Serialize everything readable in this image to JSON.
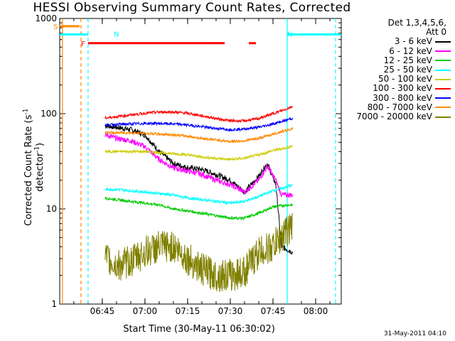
{
  "chart_data": {
    "type": "line",
    "title": "HESSI Observing Summary Count Rates, Corrected",
    "xlabel": "Start Time (30-May-11 06:30:02)",
    "ylabel_main": "Corrected Count Rate (s",
    "ylabel_sup1": "-1",
    "ylabel_mid": " detector",
    "ylabel_sup2": "-1",
    "ylabel_end": ")",
    "y_scale": "log",
    "ylim": [
      1,
      1000
    ],
    "xlim_minutes": [
      "06:30:02",
      "08:09:00"
    ],
    "x_ticks": [
      "06:45",
      "07:00",
      "07:15",
      "07:30",
      "07:45",
      "08:00"
    ],
    "y_ticks": [
      "1",
      "10",
      "100",
      "1000"
    ],
    "legend_header": [
      "Det 1,3,4,5,6,",
      "Att 0"
    ],
    "series": [
      {
        "name": "3 - 6 keV",
        "color": "#000000",
        "x": [
          "06:46",
          "06:50",
          "06:55",
          "07:00",
          "07:05",
          "07:10",
          "07:15",
          "07:20",
          "07:25",
          "07:30",
          "07:35",
          "07:40",
          "07:43",
          "07:46",
          "07:48",
          "07:52"
        ],
        "y": [
          75,
          72,
          68,
          60,
          40,
          30,
          27,
          26,
          23,
          20,
          15,
          22,
          30,
          18,
          4,
          3.5
        ]
      },
      {
        "name": "6 - 12 keV",
        "color": "#ff00ff",
        "x": [
          "06:46",
          "06:50",
          "06:55",
          "07:00",
          "07:05",
          "07:10",
          "07:15",
          "07:20",
          "07:25",
          "07:30",
          "07:35",
          "07:40",
          "07:43",
          "07:46",
          "07:48",
          "07:52"
        ],
        "y": [
          60,
          55,
          52,
          45,
          33,
          27,
          25,
          23,
          20,
          18,
          15,
          20,
          28,
          20,
          14,
          14
        ]
      },
      {
        "name": "12 - 25 keV",
        "color": "#00cc00",
        "x": [
          "06:46",
          "06:50",
          "06:55",
          "07:00",
          "07:05",
          "07:10",
          "07:15",
          "07:20",
          "07:25",
          "07:30",
          "07:35",
          "07:40",
          "07:45",
          "07:50",
          "07:52"
        ],
        "y": [
          13,
          12.5,
          12,
          11.5,
          11,
          10,
          9.5,
          9,
          8.5,
          8,
          8,
          9,
          10.5,
          11,
          11
        ]
      },
      {
        "name": "25 - 50 keV",
        "color": "#00ffff",
        "x": [
          "06:46",
          "06:50",
          "06:55",
          "07:00",
          "07:05",
          "07:10",
          "07:15",
          "07:20",
          "07:25",
          "07:30",
          "07:35",
          "07:40",
          "07:45",
          "07:50",
          "07:52"
        ],
        "y": [
          16,
          16,
          15.5,
          15,
          14.5,
          14,
          13,
          12.5,
          12,
          11.5,
          12,
          13.5,
          15.5,
          17,
          18
        ]
      },
      {
        "name": "50 - 100 keV",
        "color": "#cccc00",
        "x": [
          "06:46",
          "06:50",
          "06:55",
          "07:00",
          "07:05",
          "07:10",
          "07:15",
          "07:20",
          "07:25",
          "07:30",
          "07:35",
          "07:40",
          "07:45",
          "07:50",
          "07:52"
        ],
        "y": [
          40,
          40,
          40,
          40,
          39,
          38,
          37,
          35,
          34,
          33,
          34,
          37,
          41,
          44,
          46
        ]
      },
      {
        "name": "100 - 300 keV",
        "color": "#ff0000",
        "x": [
          "06:46",
          "06:50",
          "06:55",
          "07:00",
          "07:05",
          "07:10",
          "07:15",
          "07:20",
          "07:25",
          "07:30",
          "07:35",
          "07:40",
          "07:45",
          "07:50",
          "07:52"
        ],
        "y": [
          90,
          93,
          97,
          101,
          104,
          104,
          101,
          95,
          89,
          84,
          84,
          89,
          100,
          113,
          120
        ]
      },
      {
        "name": "300 - 800 keV",
        "color": "#0000ff",
        "x": [
          "06:46",
          "06:50",
          "06:55",
          "07:00",
          "07:05",
          "07:10",
          "07:15",
          "07:20",
          "07:25",
          "07:30",
          "07:35",
          "07:40",
          "07:45",
          "07:50",
          "07:52"
        ],
        "y": [
          76,
          77,
          78,
          79,
          79,
          78,
          76,
          73,
          70,
          68,
          69,
          72,
          78,
          86,
          90
        ]
      },
      {
        "name": "800 - 7000 keV",
        "color": "#ff8800",
        "x": [
          "06:46",
          "06:50",
          "06:55",
          "07:00",
          "07:05",
          "07:10",
          "07:15",
          "07:20",
          "07:25",
          "07:30",
          "07:35",
          "07:40",
          "07:45",
          "07:50",
          "07:52"
        ],
        "y": [
          63,
          63,
          63,
          62,
          61,
          60,
          58,
          55,
          53,
          51,
          52,
          55,
          61,
          67,
          70
        ]
      },
      {
        "name": "7000 - 20000 keV",
        "color": "#808000",
        "x": [
          "06:46",
          "06:50",
          "06:55",
          "07:00",
          "07:05",
          "07:10",
          "07:15",
          "07:20",
          "07:25",
          "07:30",
          "07:35",
          "07:40",
          "07:45",
          "07:50",
          "07:52"
        ],
        "y": [
          3,
          2.5,
          2.8,
          3.5,
          4,
          4,
          3,
          2.3,
          2,
          2,
          2.2,
          3.5,
          4,
          6,
          6.5
        ]
      }
    ],
    "flags": [
      {
        "label": "S",
        "color": "#ff8800",
        "start": "06:30:02",
        "end": "06:37:00",
        "level": 830
      },
      {
        "label": "N",
        "color": "#00ffff",
        "start": "06:30:02",
        "end": "06:40:00",
        "level": 680
      },
      {
        "label": "N",
        "color": "#00ffff",
        "start": "07:50:00",
        "end": "08:09:00",
        "level": 680
      },
      {
        "label": "F",
        "color": "#ff0000",
        "start": "06:40:00",
        "end": "07:28:00",
        "level": 550
      },
      {
        "label": "",
        "color": "#ff0000",
        "start": "07:36:30",
        "end": "07:39:00",
        "level": 550
      }
    ],
    "vlines": [
      {
        "t": "06:31:00",
        "color": "#ff8800",
        "style": "solid"
      },
      {
        "t": "06:37:30",
        "color": "#ff8800",
        "style": "dashed"
      },
      {
        "t": "06:40:00",
        "color": "#00ffff",
        "style": "dashed"
      },
      {
        "t": "07:50:00",
        "color": "#00ffff",
        "style": "solid"
      },
      {
        "t": "08:07:00",
        "color": "#00ffff",
        "style": "dashed"
      }
    ]
  },
  "stamp": "31-May-2011 04:10"
}
